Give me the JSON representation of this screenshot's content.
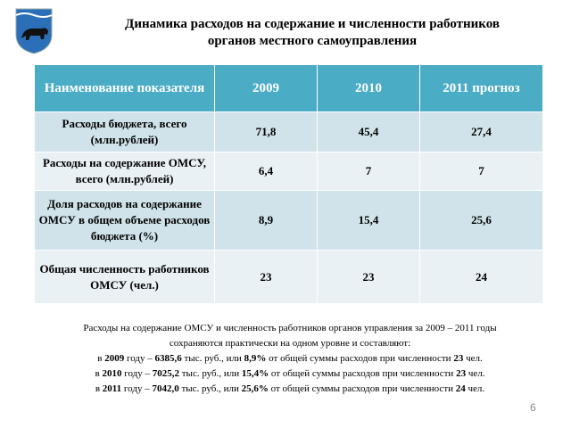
{
  "header": {
    "title_lines": [
      "Динамика расходов на содержание и численности работников",
      "органов местного самоуправления"
    ]
  },
  "table": {
    "columns": [
      "Наименование показателя",
      "2009",
      "2010",
      "2011  прогноз"
    ],
    "rows": [
      [
        "Расходы бюджета, всего (млн.рублей)",
        "71,8",
        "45,4",
        "27,4"
      ],
      [
        "Расходы на содержание ОМСУ, всего (млн.рублей)",
        "6,4",
        "7",
        "7"
      ],
      [
        "Доля расходов на содержание ОМСУ в общем объеме расходов бюджета (%)",
        "8,9",
        "15,4",
        "25,6"
      ],
      [
        "Общая численность работников ОМСУ (чел.)",
        "23",
        "23",
        "24"
      ]
    ]
  },
  "note": {
    "lines": [
      [
        "Расходы на содержание ОМСУ и численность работников органов управления за 2009 – 2011 годы"
      ],
      [
        "сохраняются практически на одном уровне и составляют:"
      ],
      [
        "в ",
        "2009",
        " году – ",
        "6385,6",
        " тыс. руб., или ",
        "8,9%",
        " от общей суммы расходов при численности ",
        "23",
        " чел."
      ],
      [
        "в ",
        "2010",
        " году – ",
        "7025,2",
        " тыс. руб., или ",
        "15,4%",
        " от общей суммы расходов при численности ",
        "23",
        " чел."
      ],
      [
        "в ",
        "2011",
        " году – ",
        "7042,0",
        " тыс. руб., или ",
        "25,6%",
        " от общей суммы расходов при численности ",
        "24",
        " чел."
      ]
    ]
  },
  "page_number": "6"
}
